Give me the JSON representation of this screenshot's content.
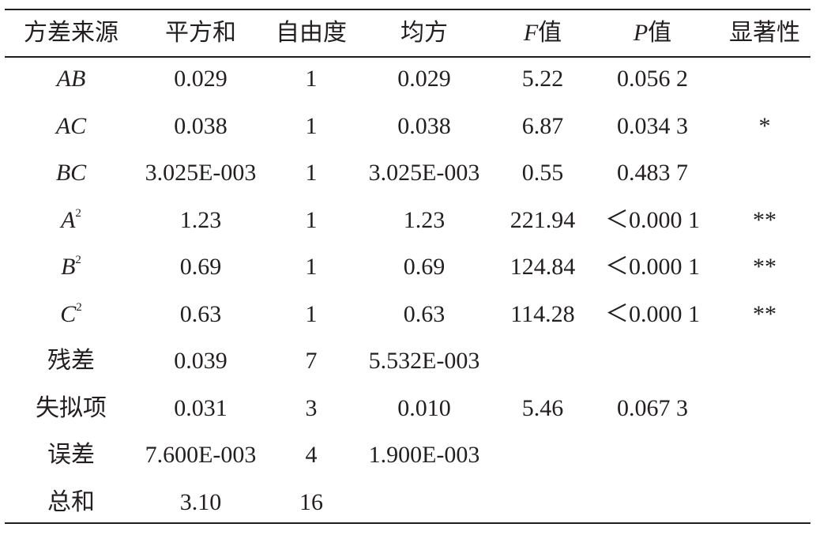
{
  "table": {
    "header": [
      "方差来源",
      "平方和",
      "自由度",
      "均方",
      {
        "var": "F",
        "text": "值"
      },
      {
        "var": "P",
        "text": "值"
      },
      "显著性"
    ],
    "rows": [
      [
        {
          "var": "AB"
        },
        "0.029",
        "1",
        "0.029",
        "5.22",
        "0.056 2",
        null
      ],
      [
        {
          "var": "AC"
        },
        "0.038",
        "1",
        "0.038",
        "6.87",
        "0.034 3",
        "*"
      ],
      [
        {
          "var": "BC"
        },
        "3.025E-003",
        "1",
        "3.025E-003",
        "0.55",
        "0.483 7",
        null
      ],
      [
        {
          "var": "A",
          "sup": "2"
        },
        "1.23",
        "1",
        "1.23",
        "221.94",
        "＜0.000 1",
        "**"
      ],
      [
        {
          "var": "B",
          "sup": "2"
        },
        "0.69",
        "1",
        "0.69",
        "124.84",
        "＜0.000 1",
        "**"
      ],
      [
        {
          "var": "C",
          "sup": "2"
        },
        "0.63",
        "1",
        "0.63",
        "114.28",
        "＜0.000 1",
        "**"
      ],
      [
        "残差",
        "0.039",
        "7",
        "5.532E-003",
        null,
        null,
        null
      ],
      [
        "失拟项",
        "0.031",
        "3",
        "0.010",
        "5.46",
        "0.067 3",
        null
      ],
      [
        "误差",
        "7.600E-003",
        "4",
        "1.900E-003",
        null,
        null,
        null
      ],
      [
        "总和",
        "3.10",
        "16",
        null,
        null,
        null,
        null
      ]
    ]
  }
}
